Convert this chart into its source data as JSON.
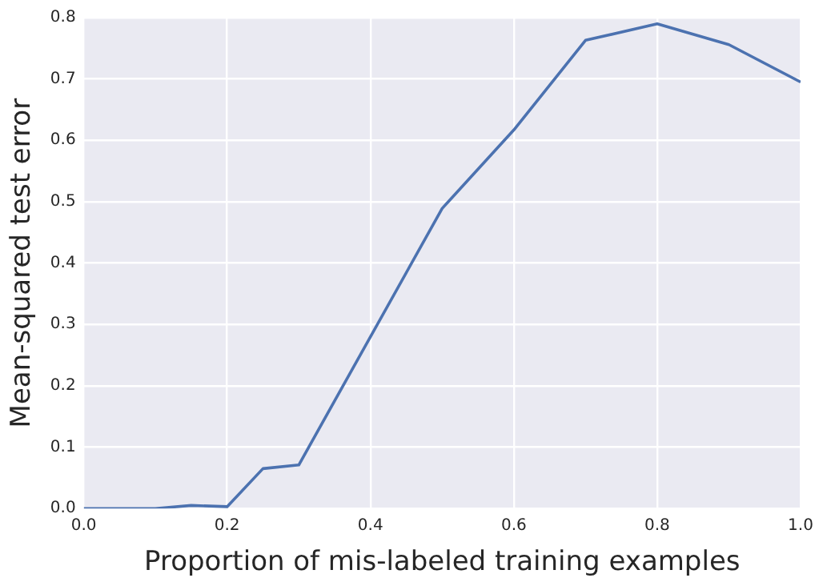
{
  "chart_data": {
    "type": "line",
    "xlabel": "Proportion of mis-labeled training examples",
    "ylabel": "Mean-squared test error",
    "x": [
      0,
      0.1,
      0.15,
      0.2,
      0.25,
      0.3,
      0.5,
      0.6,
      0.7,
      0.8,
      0.9,
      1.0
    ],
    "series": [
      {
        "color": "#4c72b0",
        "values": [
          0,
          0,
          0.005,
          0.003,
          0.065,
          0.071,
          0.489,
          0.617,
          0.763,
          0.79,
          0.756,
          0.695
        ]
      }
    ],
    "xlim": [
      0,
      1
    ],
    "xticks": [
      {
        "value": 0,
        "label": "0.0"
      },
      0.2,
      0.4,
      0.6,
      0.8,
      {
        "value": 1,
        "label": "1.0"
      }
    ],
    "ylim": [
      0,
      0.8
    ],
    "yticks": [
      {
        "value": 0,
        "label": "0.0"
      },
      0.1,
      0.2,
      0.3,
      0.4,
      0.5,
      0.6,
      0.7,
      0.8
    ],
    "grid": true,
    "legend": false,
    "marker": "none",
    "line_style": "solid"
  }
}
